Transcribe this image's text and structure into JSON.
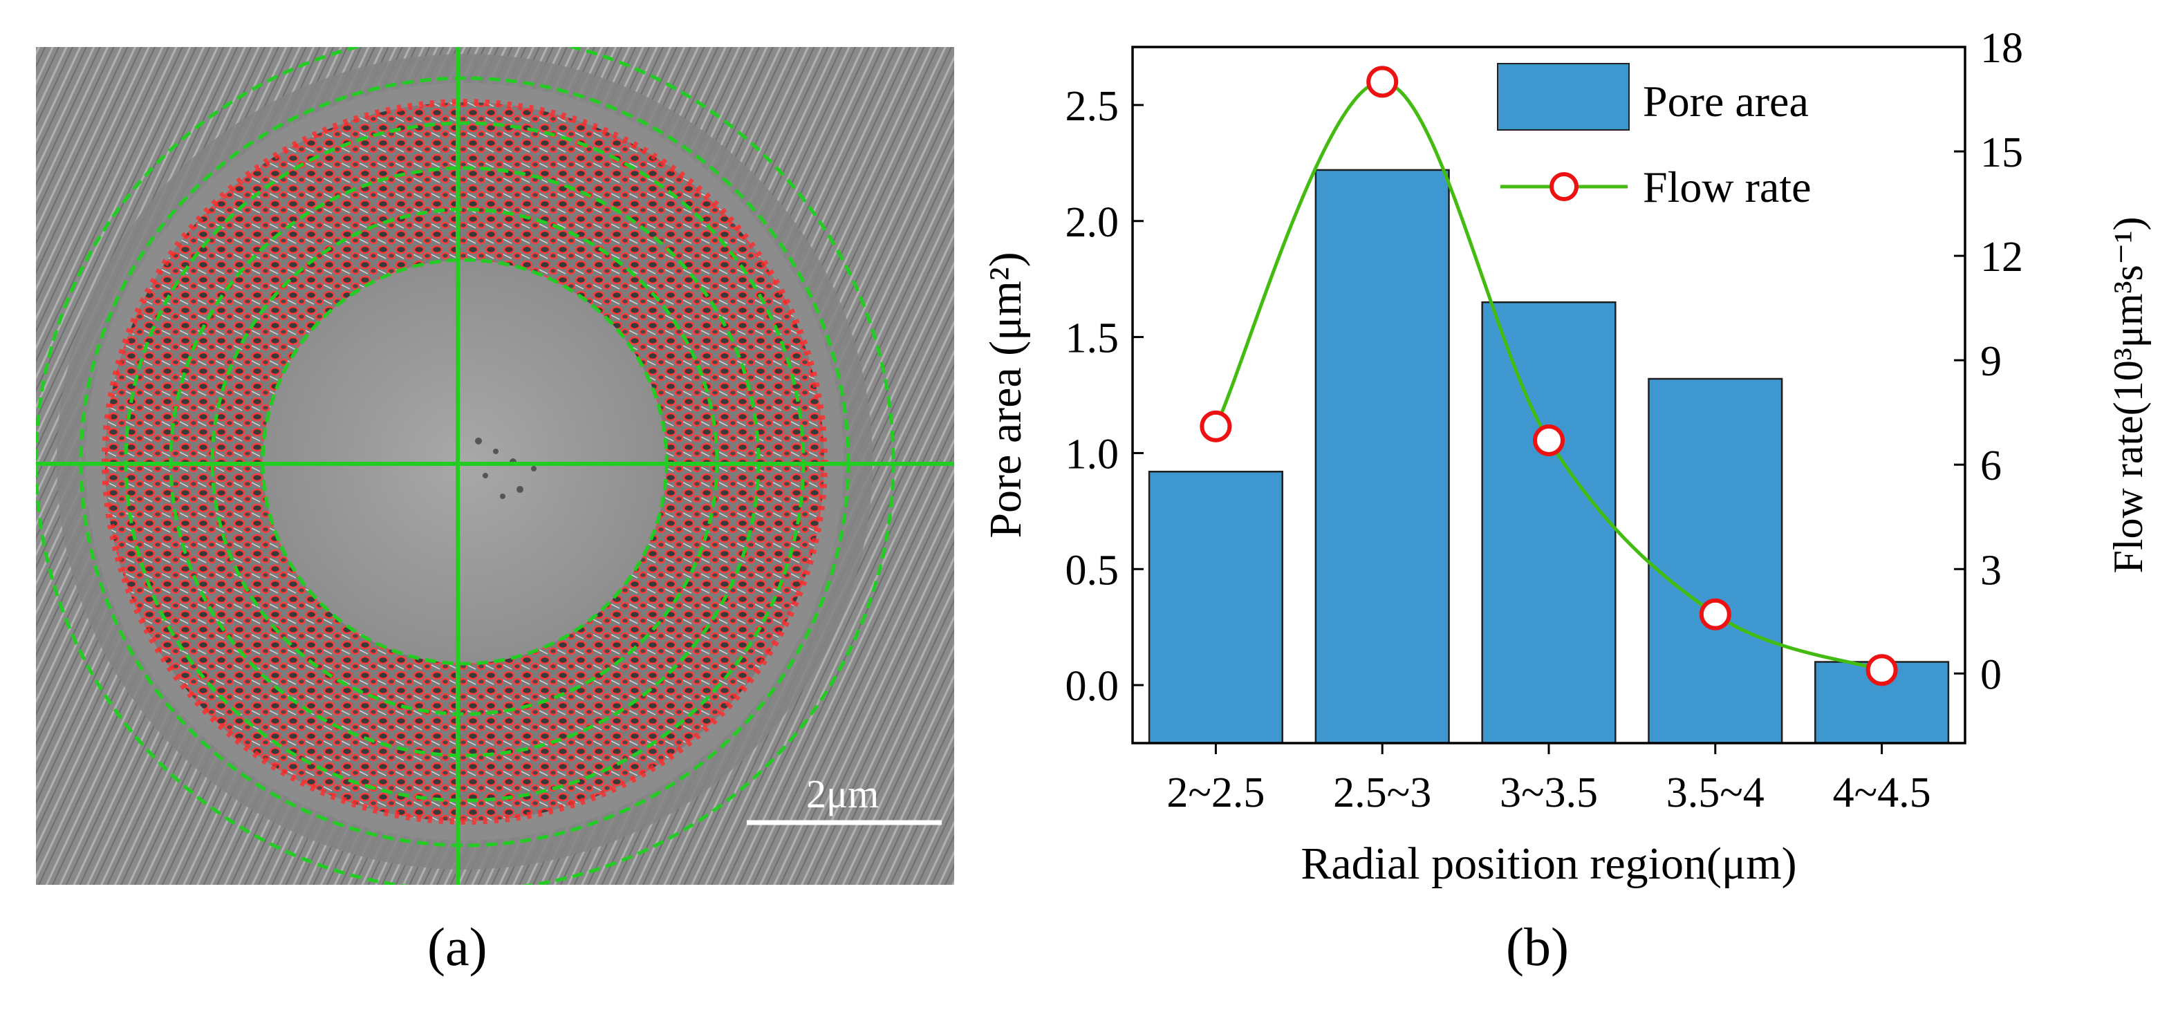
{
  "panel_a": {
    "label": "(a)",
    "scale_bar_label": "2μm"
  },
  "chart_data": {
    "type": "bar",
    "label": "(b)",
    "categories": [
      "2~2.5",
      "2.5~3",
      "3~3.5",
      "3.5~4",
      "4~4.5"
    ],
    "series": [
      {
        "name": "Pore area",
        "axis": "left",
        "kind": "bar",
        "color": "#3f97d0",
        "values": [
          0.92,
          2.22,
          1.65,
          1.32,
          0.1
        ]
      },
      {
        "name": "Flow rate",
        "axis": "right",
        "kind": "line",
        "color": "#44bb11",
        "marker_color": "#ee1111",
        "values": [
          7.1,
          17.0,
          6.7,
          1.7,
          0.1
        ]
      }
    ],
    "xlabel": "Radial position region(μm)",
    "ylabel_left": "Pore area (μm²)",
    "ylabel_right": "Flow rate(10³μm³s⁻¹)",
    "ylim_left": [
      -0.25,
      2.75
    ],
    "ylim_right": [
      -2,
      18
    ],
    "yticks_left": [
      "0.0",
      "0.5",
      "1.0",
      "1.5",
      "2.0",
      "2.5"
    ],
    "yticks_right": [
      "0",
      "3",
      "6",
      "9",
      "12",
      "15",
      "18"
    ],
    "legend": [
      "Pore area",
      "Flow rate"
    ],
    "legend_position": "top-right"
  }
}
